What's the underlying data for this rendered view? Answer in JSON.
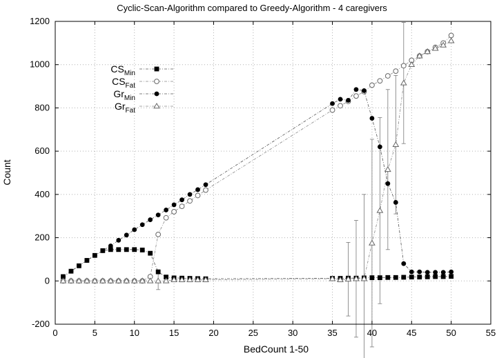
{
  "chart_data": {
    "type": "line",
    "title": "Cyclic-Scan-Algorithm compared to Greedy-Algorithm - 4 caregivers",
    "xlabel": "BedCount 1-50",
    "ylabel": "Count",
    "xlim": [
      0,
      55
    ],
    "ylim": [
      -200,
      1200
    ],
    "x_ticks": [
      0,
      5,
      10,
      15,
      20,
      25,
      30,
      35,
      40,
      45,
      50,
      55
    ],
    "y_ticks": [
      -200,
      0,
      200,
      400,
      600,
      800,
      1000,
      1200
    ],
    "grid": true,
    "legend_position": "top-left",
    "series": [
      {
        "name": "CS",
        "subscript": "Min",
        "marker": "filled-square",
        "color": "#000000",
        "x": [
          1,
          2,
          3,
          4,
          5,
          6,
          7,
          8,
          9,
          10,
          11,
          12,
          13,
          14,
          15,
          16,
          17,
          18,
          19,
          35,
          36,
          37,
          38,
          39,
          40,
          41,
          42,
          43,
          44,
          45,
          46,
          47,
          48,
          49,
          50
        ],
        "y": [
          20,
          45,
          70,
          95,
          118,
          140,
          145,
          145,
          145,
          145,
          143,
          128,
          42,
          18,
          14,
          13,
          12,
          11,
          10,
          12,
          12,
          13,
          13,
          14,
          15,
          15,
          16,
          16,
          17,
          18,
          18,
          19,
          20,
          20,
          21
        ]
      },
      {
        "name": "CS",
        "subscript": "Fat",
        "marker": "open-circle",
        "color": "#666666",
        "x": [
          1,
          2,
          3,
          4,
          5,
          6,
          7,
          8,
          9,
          10,
          11,
          12,
          13,
          14,
          15,
          16,
          17,
          18,
          19,
          35,
          36,
          37,
          38,
          39,
          40,
          41,
          42,
          43,
          44,
          45,
          46,
          47,
          48,
          49,
          50
        ],
        "y": [
          0,
          0,
          0,
          0,
          0,
          0,
          0,
          0,
          0,
          0,
          0,
          20,
          215,
          292,
          320,
          345,
          370,
          395,
          420,
          790,
          810,
          830,
          855,
          875,
          905,
          925,
          948,
          970,
          995,
          1020,
          1040,
          1060,
          1080,
          1100,
          1135
        ]
      },
      {
        "name": "Gr",
        "subscript": "Min",
        "marker": "filled-circle",
        "color": "#000000",
        "x": [
          1,
          2,
          3,
          4,
          5,
          6,
          7,
          8,
          9,
          10,
          11,
          12,
          13,
          14,
          15,
          16,
          17,
          18,
          19,
          35,
          36,
          37,
          38,
          39,
          40,
          41,
          42,
          43,
          44,
          45,
          46,
          47,
          48,
          49,
          50
        ],
        "y": [
          20,
          45,
          70,
          95,
          118,
          140,
          162,
          188,
          212,
          237,
          260,
          283,
          305,
          328,
          352,
          375,
          400,
          422,
          445,
          820,
          840,
          835,
          885,
          880,
          752,
          620,
          450,
          363,
          80,
          42,
          42,
          40,
          40,
          40,
          42
        ],
        "error": [
          0,
          0,
          0,
          0,
          0,
          0,
          0,
          0,
          0,
          0,
          0,
          0,
          0,
          0,
          0,
          0,
          0,
          0,
          0,
          0,
          0,
          0,
          0,
          0,
          0,
          0,
          0,
          0,
          0,
          0,
          0,
          0,
          0,
          0,
          0
        ]
      },
      {
        "name": "Gr",
        "subscript": "Fat",
        "marker": "open-triangle",
        "color": "#666666",
        "x": [
          1,
          2,
          3,
          4,
          5,
          6,
          7,
          8,
          9,
          10,
          11,
          12,
          13,
          14,
          15,
          16,
          17,
          18,
          19,
          35,
          36,
          37,
          38,
          39,
          40,
          41,
          42,
          43,
          44,
          45,
          46,
          47,
          48,
          49,
          50
        ],
        "y": [
          0,
          0,
          0,
          0,
          0,
          0,
          0,
          0,
          0,
          0,
          0,
          0,
          0,
          0,
          5,
          5,
          5,
          5,
          5,
          10,
          5,
          8,
          10,
          10,
          175,
          325,
          515,
          630,
          915,
          1000,
          1040,
          1060,
          1075,
          1090,
          1110
        ],
        "error": [
          0,
          0,
          0,
          0,
          0,
          0,
          0,
          0,
          0,
          0,
          0,
          0,
          40,
          0,
          0,
          0,
          0,
          0,
          0,
          0,
          0,
          170,
          270,
          390,
          480,
          430,
          370,
          320,
          280,
          0,
          0,
          0,
          0,
          0,
          0
        ]
      }
    ]
  }
}
